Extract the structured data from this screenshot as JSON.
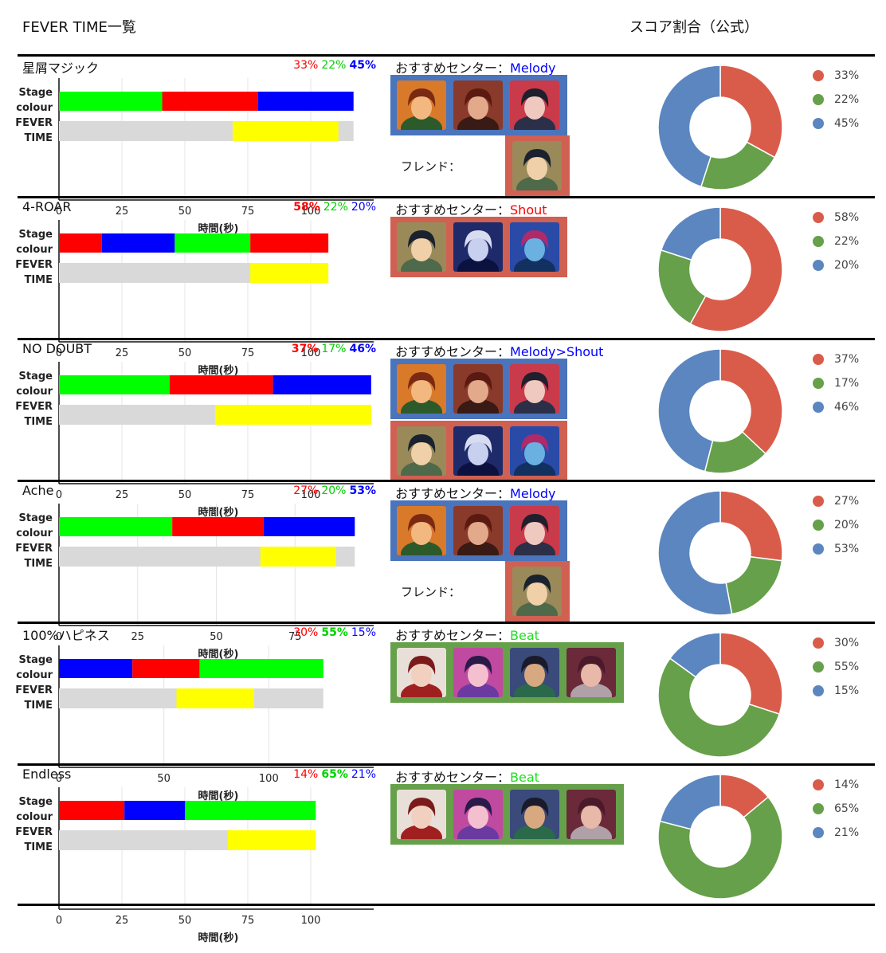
{
  "header": {
    "left": "FEVER TIME一覧",
    "right": "スコア割合（公式）"
  },
  "labels": {
    "stage": "Stage",
    "colour": "colour",
    "fever": "FEVER",
    "time": "TIME",
    "xlabel": "時間(秒)",
    "rec_prefix": "おすすめセンター：",
    "friend": "フレンド："
  },
  "colors": {
    "red": "#ff0000",
    "green": "#00ff00",
    "blue": "#0000ff",
    "yellow": "#ffff00",
    "grey": "#d9d9d9",
    "pie_red": "#d95c4b",
    "pie_green": "#66a04a",
    "pie_blue": "#5b86c0",
    "frame_blue": "#4a74bb",
    "frame_red": "#d06052",
    "frame_green": "#66a04a"
  },
  "songs": [
    {
      "name": "星屑マジック",
      "pcts": [
        "33%",
        "22%",
        "45%"
      ],
      "bold": [
        false,
        false,
        true
      ],
      "rec_text": "Melody",
      "rec_color": "#0000ff",
      "frames": [
        {
          "color": "blue",
          "cards": [
            "c1",
            "c2",
            "c3"
          ]
        }
      ],
      "friend": {
        "show": true,
        "card": "c4"
      },
      "chart_data": {
        "type": "bar",
        "xlabel": "時間(秒)",
        "xlim": [
          0,
          125
        ],
        "xticks": [
          0,
          25,
          50,
          75,
          100
        ],
        "stage_colour": [
          {
            "color": "green",
            "start": 0,
            "end": 41
          },
          {
            "color": "red",
            "start": 41,
            "end": 79
          },
          {
            "color": "blue",
            "start": 79,
            "end": 117
          }
        ],
        "fever_total": 117,
        "fever": [
          69,
          111
        ],
        "pie": [
          {
            "label": "33%",
            "value": 33
          },
          {
            "label": "22%",
            "value": 22
          },
          {
            "label": "45%",
            "value": 45
          }
        ]
      }
    },
    {
      "name": "4-ROAR",
      "pcts": [
        "58%",
        "22%",
        "20%"
      ],
      "bold": [
        true,
        false,
        false
      ],
      "rec_text": "Shout",
      "rec_color": "#ff0000",
      "frames": [
        {
          "color": "red",
          "cards": [
            "c4",
            "c5",
            "c6"
          ]
        }
      ],
      "friend": {
        "show": false
      },
      "chart_data": {
        "type": "bar",
        "xlabel": "時間(秒)",
        "xlim": [
          0,
          125
        ],
        "xticks": [
          0,
          25,
          50,
          75,
          100
        ],
        "stage_colour": [
          {
            "color": "red",
            "start": 0,
            "end": 17
          },
          {
            "color": "blue",
            "start": 17,
            "end": 46
          },
          {
            "color": "green",
            "start": 46,
            "end": 76
          },
          {
            "color": "red",
            "start": 76,
            "end": 107
          }
        ],
        "fever_total": 107,
        "fever": [
          76,
          107
        ],
        "pie": [
          {
            "label": "58%",
            "value": 58
          },
          {
            "label": "22%",
            "value": 22
          },
          {
            "label": "20%",
            "value": 20
          }
        ]
      }
    },
    {
      "name": "NO DOUBT",
      "pcts": [
        "37%",
        "17%",
        "46%"
      ],
      "bold": [
        true,
        false,
        true
      ],
      "rec_text": "Melody>Shout",
      "rec_color": "#0000ff",
      "frames": [
        {
          "color": "blue",
          "cards": [
            "c1",
            "c2",
            "c3"
          ]
        },
        {
          "color": "red",
          "cards": [
            "c4",
            "c5",
            "c6"
          ]
        }
      ],
      "friend": {
        "show": false
      },
      "chart_data": {
        "type": "bar",
        "xlabel": "時間(秒)",
        "xlim": [
          0,
          125
        ],
        "xticks": [
          0,
          25,
          50,
          75,
          100
        ],
        "stage_colour": [
          {
            "color": "green",
            "start": 0,
            "end": 44
          },
          {
            "color": "red",
            "start": 44,
            "end": 85
          },
          {
            "color": "blue",
            "start": 85,
            "end": 124
          }
        ],
        "fever_total": 124,
        "fever": [
          62,
          124
        ],
        "pie": [
          {
            "label": "37%",
            "value": 37
          },
          {
            "label": "17%",
            "value": 17
          },
          {
            "label": "46%",
            "value": 46
          }
        ]
      }
    },
    {
      "name": "Ache",
      "pcts": [
        "27%",
        "20%",
        "53%"
      ],
      "bold": [
        false,
        false,
        true
      ],
      "rec_text": "Melody",
      "rec_color": "#0000ff",
      "frames": [
        {
          "color": "blue",
          "cards": [
            "c1",
            "c2",
            "c3"
          ]
        }
      ],
      "friend": {
        "show": true,
        "card": "c4"
      },
      "chart_data": {
        "type": "bar",
        "xlabel": "時間(秒)",
        "xlim": [
          0,
          100
        ],
        "xticks": [
          0,
          25,
          50,
          75
        ],
        "stage_colour": [
          {
            "color": "green",
            "start": 0,
            "end": 36
          },
          {
            "color": "red",
            "start": 36,
            "end": 65
          },
          {
            "color": "blue",
            "start": 65,
            "end": 94
          }
        ],
        "fever_total": 94,
        "fever": [
          64,
          88
        ],
        "pie": [
          {
            "label": "27%",
            "value": 27
          },
          {
            "label": "20%",
            "value": 20
          },
          {
            "label": "53%",
            "value": 53
          }
        ]
      }
    },
    {
      "name": "100%ハピネス",
      "pcts": [
        "30%",
        "55%",
        "15%"
      ],
      "bold": [
        false,
        true,
        false
      ],
      "rec_text": "Beat",
      "rec_color": "#00ff00",
      "frames": [
        {
          "color": "green",
          "cards": [
            "c7",
            "c8",
            "c9",
            "c10"
          ]
        }
      ],
      "friend": {
        "show": false
      },
      "chart_data": {
        "type": "bar",
        "xlabel": "時間(秒)",
        "xlim": [
          0,
          150
        ],
        "xticks": [
          0,
          50,
          100
        ],
        "stage_colour": [
          {
            "color": "blue",
            "start": 0,
            "end": 35
          },
          {
            "color": "red",
            "start": 35,
            "end": 67
          },
          {
            "color": "green",
            "start": 67,
            "end": 126
          }
        ],
        "fever_total": 126,
        "fever": [
          56,
          93
        ],
        "pie": [
          {
            "label": "30%",
            "value": 30
          },
          {
            "label": "55%",
            "value": 55
          },
          {
            "label": "15%",
            "value": 15
          }
        ]
      }
    },
    {
      "name": "Endless",
      "pcts": [
        "14%",
        "65%",
        "21%"
      ],
      "bold": [
        false,
        true,
        false
      ],
      "rec_text": "Beat",
      "rec_color": "#00ff00",
      "frames": [
        {
          "color": "green",
          "cards": [
            "c7",
            "c8",
            "c9",
            "c10"
          ]
        }
      ],
      "friend": {
        "show": false
      },
      "chart_data": {
        "type": "bar",
        "xlabel": "時間(秒)",
        "xlim": [
          0,
          125
        ],
        "xticks": [
          0,
          25,
          50,
          75,
          100
        ],
        "stage_colour": [
          {
            "color": "red",
            "start": 0,
            "end": 26
          },
          {
            "color": "blue",
            "start": 26,
            "end": 50
          },
          {
            "color": "green",
            "start": 50,
            "end": 102
          }
        ],
        "fever_total": 102,
        "fever": [
          67,
          102
        ],
        "pie": [
          {
            "label": "14%",
            "value": 14
          },
          {
            "label": "65%",
            "value": 65
          },
          {
            "label": "21%",
            "value": 21
          }
        ]
      }
    }
  ]
}
